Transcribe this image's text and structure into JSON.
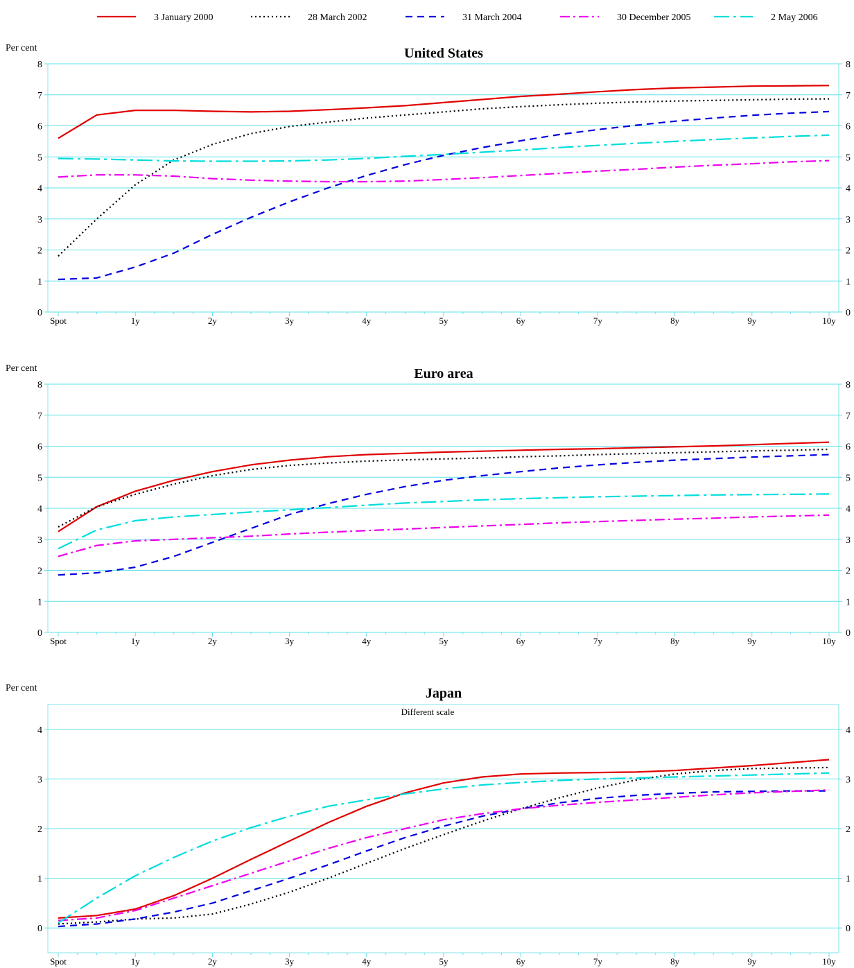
{
  "legend": [
    {
      "name": "3 January 2000",
      "color": "#e00000",
      "dash": "solid"
    },
    {
      "name": "28 March 2002",
      "color": "#000000",
      "dash": "dotted"
    },
    {
      "name": "31 March 2004",
      "color": "#0000dd",
      "dash": "dashed"
    },
    {
      "name": "30 December 2005",
      "color": "#ee00ee",
      "dash": "dashdot"
    },
    {
      "name": "2 May 2006",
      "color": "#00dddd",
      "dash": "longdashdot"
    }
  ],
  "chart_data": [
    {
      "type": "line",
      "title": "United States",
      "subtitle": "",
      "ylabel": "Per cent",
      "x": [
        0,
        0.5,
        1,
        1.5,
        2,
        2.5,
        3,
        3.5,
        4,
        4.5,
        5,
        5.5,
        6,
        6.5,
        7,
        7.5,
        8,
        8.5,
        9,
        9.5,
        10
      ],
      "xticks": [
        0,
        1,
        2,
        3,
        4,
        5,
        6,
        7,
        8,
        9,
        10
      ],
      "xtick_labels": [
        "Spot",
        "1y",
        "2y",
        "3y",
        "4y",
        "5y",
        "6y",
        "7y",
        "8y",
        "9y",
        "10y"
      ],
      "xlim": [
        0,
        10
      ],
      "ylim": [
        0,
        8
      ],
      "yticks": [
        0,
        1,
        2,
        3,
        4,
        5,
        6,
        7,
        8
      ],
      "grid": true,
      "series": [
        {
          "name": "3 January 2000",
          "values": [
            5.6,
            6.35,
            6.5,
            6.5,
            6.47,
            6.45,
            6.47,
            6.52,
            6.58,
            6.65,
            6.75,
            6.85,
            6.95,
            7.02,
            7.1,
            7.17,
            7.22,
            7.25,
            7.28,
            7.29,
            7.3
          ]
        },
        {
          "name": "28 March 2002",
          "values": [
            1.8,
            3.0,
            4.1,
            4.9,
            5.4,
            5.75,
            5.98,
            6.12,
            6.25,
            6.35,
            6.45,
            6.55,
            6.62,
            6.68,
            6.73,
            6.77,
            6.8,
            6.82,
            6.84,
            6.86,
            6.87
          ]
        },
        {
          "name": "31 March 2004",
          "values": [
            1.05,
            1.1,
            1.45,
            1.9,
            2.5,
            3.05,
            3.55,
            4.0,
            4.4,
            4.75,
            5.05,
            5.3,
            5.52,
            5.72,
            5.88,
            6.02,
            6.15,
            6.25,
            6.34,
            6.41,
            6.46
          ]
        },
        {
          "name": "30 December 2005",
          "values": [
            4.35,
            4.42,
            4.42,
            4.38,
            4.3,
            4.25,
            4.22,
            4.2,
            4.2,
            4.22,
            4.27,
            4.33,
            4.4,
            4.47,
            4.54,
            4.6,
            4.67,
            4.73,
            4.78,
            4.84,
            4.88
          ]
        },
        {
          "name": "2 May 2006",
          "values": [
            4.95,
            4.93,
            4.9,
            4.87,
            4.86,
            4.86,
            4.87,
            4.9,
            4.95,
            5.02,
            5.08,
            5.15,
            5.22,
            5.3,
            5.37,
            5.44,
            5.5,
            5.56,
            5.61,
            5.66,
            5.7
          ]
        }
      ]
    },
    {
      "type": "line",
      "title": "Euro area",
      "subtitle": "",
      "ylabel": "Per cent",
      "x": [
        0,
        0.5,
        1,
        1.5,
        2,
        2.5,
        3,
        3.5,
        4,
        4.5,
        5,
        5.5,
        6,
        6.5,
        7,
        7.5,
        8,
        8.5,
        9,
        9.5,
        10
      ],
      "xticks": [
        0,
        1,
        2,
        3,
        4,
        5,
        6,
        7,
        8,
        9,
        10
      ],
      "xtick_labels": [
        "Spot",
        "1y",
        "2y",
        "3y",
        "4y",
        "5y",
        "6y",
        "7y",
        "8y",
        "9y",
        "10y"
      ],
      "xlim": [
        0,
        10
      ],
      "ylim": [
        0,
        8
      ],
      "yticks": [
        0,
        1,
        2,
        3,
        4,
        5,
        6,
        7,
        8
      ],
      "grid": true,
      "series": [
        {
          "name": "3 January 2000",
          "values": [
            3.25,
            4.05,
            4.55,
            4.9,
            5.18,
            5.4,
            5.55,
            5.66,
            5.73,
            5.77,
            5.81,
            5.84,
            5.87,
            5.9,
            5.92,
            5.95,
            5.98,
            6.01,
            6.05,
            6.09,
            6.13
          ]
        },
        {
          "name": "28 March 2002",
          "values": [
            3.4,
            4.05,
            4.45,
            4.78,
            5.05,
            5.25,
            5.38,
            5.46,
            5.52,
            5.56,
            5.59,
            5.62,
            5.66,
            5.69,
            5.73,
            5.76,
            5.79,
            5.82,
            5.85,
            5.87,
            5.9
          ]
        },
        {
          "name": "31 March 2004",
          "values": [
            1.85,
            1.92,
            2.1,
            2.45,
            2.9,
            3.35,
            3.8,
            4.15,
            4.45,
            4.7,
            4.9,
            5.05,
            5.18,
            5.3,
            5.4,
            5.48,
            5.55,
            5.6,
            5.65,
            5.69,
            5.73
          ]
        },
        {
          "name": "30 December 2005",
          "values": [
            2.45,
            2.8,
            2.95,
            3.0,
            3.05,
            3.1,
            3.17,
            3.23,
            3.28,
            3.33,
            3.38,
            3.43,
            3.48,
            3.53,
            3.57,
            3.61,
            3.65,
            3.68,
            3.72,
            3.75,
            3.78
          ]
        },
        {
          "name": "2 May 2006",
          "values": [
            2.7,
            3.3,
            3.6,
            3.72,
            3.8,
            3.88,
            3.95,
            4.02,
            4.1,
            4.17,
            4.22,
            4.27,
            4.31,
            4.34,
            4.37,
            4.39,
            4.41,
            4.43,
            4.44,
            4.45,
            4.46
          ]
        }
      ]
    },
    {
      "type": "line",
      "title": "Japan",
      "subtitle": "Different scale",
      "ylabel": "Per cent",
      "x": [
        0,
        0.5,
        1,
        1.5,
        2,
        2.5,
        3,
        3.5,
        4,
        4.5,
        5,
        5.5,
        6,
        6.5,
        7,
        7.5,
        8,
        8.5,
        9,
        9.5,
        10
      ],
      "xticks": [
        0,
        1,
        2,
        3,
        4,
        5,
        6,
        7,
        8,
        9,
        10
      ],
      "xtick_labels": [
        "Spot",
        "1y",
        "2y",
        "3y",
        "4y",
        "5y",
        "6y",
        "7y",
        "8y",
        "9y",
        "10y"
      ],
      "xlim": [
        0,
        10
      ],
      "ylim": [
        -0.5,
        4.5
      ],
      "yticks": [
        0,
        1,
        2,
        3,
        4
      ],
      "grid": true,
      "series": [
        {
          "name": "3 January 2000",
          "values": [
            0.2,
            0.25,
            0.38,
            0.65,
            1.0,
            1.38,
            1.75,
            2.12,
            2.45,
            2.72,
            2.92,
            3.04,
            3.1,
            3.12,
            3.13,
            3.14,
            3.17,
            3.22,
            3.27,
            3.33,
            3.39
          ]
        },
        {
          "name": "28 March 2002",
          "values": [
            0.08,
            0.12,
            0.18,
            0.2,
            0.28,
            0.48,
            0.72,
            1.0,
            1.3,
            1.6,
            1.88,
            2.15,
            2.4,
            2.62,
            2.82,
            2.98,
            3.1,
            3.17,
            3.21,
            3.22,
            3.23
          ]
        },
        {
          "name": "31 March 2004",
          "values": [
            0.03,
            0.08,
            0.18,
            0.32,
            0.5,
            0.75,
            1.0,
            1.27,
            1.55,
            1.82,
            2.05,
            2.25,
            2.4,
            2.52,
            2.61,
            2.67,
            2.71,
            2.74,
            2.75,
            2.76,
            2.76
          ]
        },
        {
          "name": "30 December 2005",
          "values": [
            0.15,
            0.2,
            0.35,
            0.6,
            0.85,
            1.1,
            1.35,
            1.6,
            1.82,
            2.0,
            2.18,
            2.3,
            2.4,
            2.47,
            2.53,
            2.58,
            2.63,
            2.68,
            2.72,
            2.75,
            2.78
          ]
        },
        {
          "name": "2 May 2006",
          "values": [
            0.1,
            0.6,
            1.05,
            1.42,
            1.75,
            2.02,
            2.25,
            2.45,
            2.58,
            2.7,
            2.8,
            2.88,
            2.93,
            2.97,
            3.0,
            3.02,
            3.04,
            3.06,
            3.08,
            3.1,
            3.12
          ]
        }
      ]
    }
  ]
}
